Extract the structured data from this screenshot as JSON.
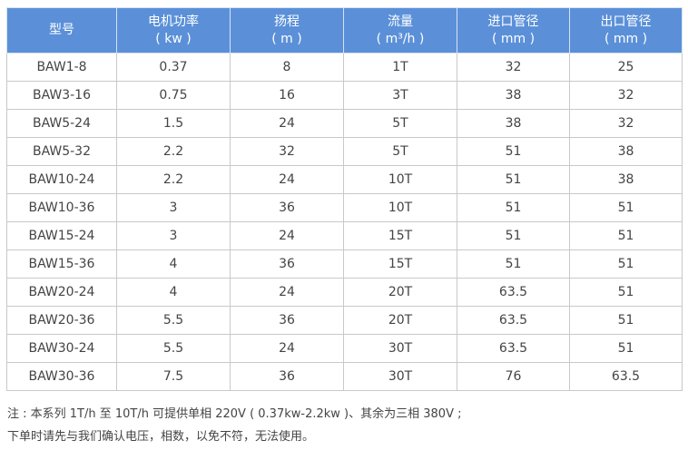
{
  "table": {
    "header": [
      [
        "型号"
      ],
      [
        "电机功率",
        "( kw )"
      ],
      [
        "扬程",
        "( m )"
      ],
      [
        "流量",
        "( m³/h )"
      ],
      [
        "进口管径",
        "( mm )"
      ],
      [
        "出口管径",
        "( mm )"
      ]
    ],
    "rows": [
      [
        "BAW1-8",
        "0.37",
        "8",
        "1T",
        "32",
        "25"
      ],
      [
        "BAW3-16",
        "0.75",
        "16",
        "3T",
        "38",
        "32"
      ],
      [
        "BAW5-24",
        "1.5",
        "24",
        "5T",
        "38",
        "32"
      ],
      [
        "BAW5-32",
        "2.2",
        "32",
        "5T",
        "51",
        "38"
      ],
      [
        "BAW10-24",
        "2.2",
        "24",
        "10T",
        "51",
        "38"
      ],
      [
        "BAW10-36",
        "3",
        "36",
        "10T",
        "51",
        "51"
      ],
      [
        "BAW15-24",
        "3",
        "24",
        "15T",
        "51",
        "51"
      ],
      [
        "BAW15-36",
        "4",
        "36",
        "15T",
        "51",
        "51"
      ],
      [
        "BAW20-24",
        "4",
        "24",
        "20T",
        "63.5",
        "51"
      ],
      [
        "BAW20-36",
        "5.5",
        "36",
        "20T",
        "63.5",
        "51"
      ],
      [
        "BAW30-24",
        "5.5",
        "24",
        "30T",
        "63.5",
        "51"
      ],
      [
        "BAW30-36",
        "7.5",
        "36",
        "30T",
        "76",
        "63.5"
      ]
    ]
  },
  "notes": [
    "注 : 本系列 1T/h 至 10T/h 可提供单相 220V ( 0.37kw-2.2kw )、其余为三相 380V ;",
    "下单时请先与我们确认电压，相数，以免不符，无法使用。"
  ]
}
